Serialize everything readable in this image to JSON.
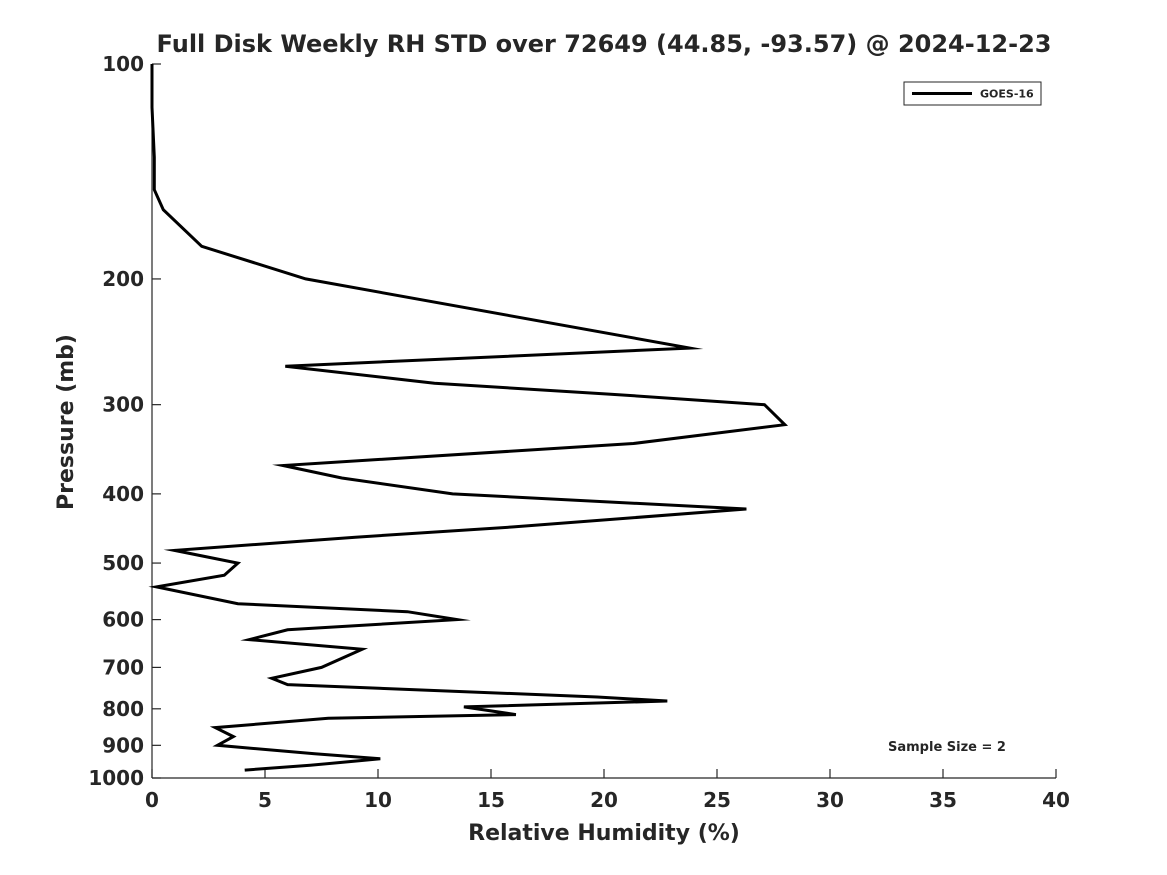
{
  "chart_data": {
    "type": "line",
    "title": "Full Disk Weekly RH STD over 72649 (44.85, -93.57) @ 2024-12-23",
    "xlabel": "Relative Humidity (%)",
    "ylabel": "Pressure (mb)",
    "xlim": [
      0,
      40
    ],
    "ylim": [
      100,
      1000
    ],
    "yscale": "log",
    "grid": false,
    "legend_position": "top-right",
    "x_ticks": [
      0,
      5,
      10,
      15,
      20,
      25,
      30,
      35,
      40
    ],
    "x_tick_labels": [
      "0",
      "5",
      "10",
      "15",
      "20",
      "25",
      "30",
      "35",
      "40"
    ],
    "y_ticks": [
      100,
      200,
      300,
      400,
      500,
      600,
      700,
      800,
      900,
      1000
    ],
    "y_tick_labels": [
      "100",
      "200",
      "300",
      "400",
      "500",
      "600",
      "700",
      "800",
      "900",
      "1000"
    ],
    "annotation": "Sample Size = 2",
    "series": [
      {
        "name": "GOES-16",
        "color": "#000000",
        "points": [
          [
            0.0,
            100
          ],
          [
            0.0,
            115
          ],
          [
            0.1,
            135
          ],
          [
            0.1,
            150
          ],
          [
            0.5,
            160
          ],
          [
            2.2,
            180
          ],
          [
            6.8,
            200
          ],
          [
            23.8,
            250
          ],
          [
            5.9,
            265
          ],
          [
            12.5,
            280
          ],
          [
            20.3,
            290
          ],
          [
            27.1,
            300
          ],
          [
            28.0,
            320
          ],
          [
            21.3,
            340
          ],
          [
            5.8,
            365
          ],
          [
            8.4,
            380
          ],
          [
            13.3,
            400
          ],
          [
            26.3,
            420
          ],
          [
            16.0,
            445
          ],
          [
            9.0,
            460
          ],
          [
            1.0,
            480
          ],
          [
            3.8,
            500
          ],
          [
            3.2,
            520
          ],
          [
            0.2,
            540
          ],
          [
            3.8,
            570
          ],
          [
            11.3,
            585
          ],
          [
            13.5,
            600
          ],
          [
            6.0,
            620
          ],
          [
            4.3,
            640
          ],
          [
            9.3,
            660
          ],
          [
            7.5,
            700
          ],
          [
            5.3,
            725
          ],
          [
            6.0,
            740
          ],
          [
            19.7,
            770
          ],
          [
            22.8,
            780
          ],
          [
            13.8,
            795
          ],
          [
            16.1,
            815
          ],
          [
            7.8,
            825
          ],
          [
            2.8,
            850
          ],
          [
            3.6,
            875
          ],
          [
            2.9,
            900
          ],
          [
            7.2,
            925
          ],
          [
            10.1,
            940
          ],
          [
            7.0,
            960
          ],
          [
            4.1,
            975
          ]
        ]
      }
    ]
  }
}
